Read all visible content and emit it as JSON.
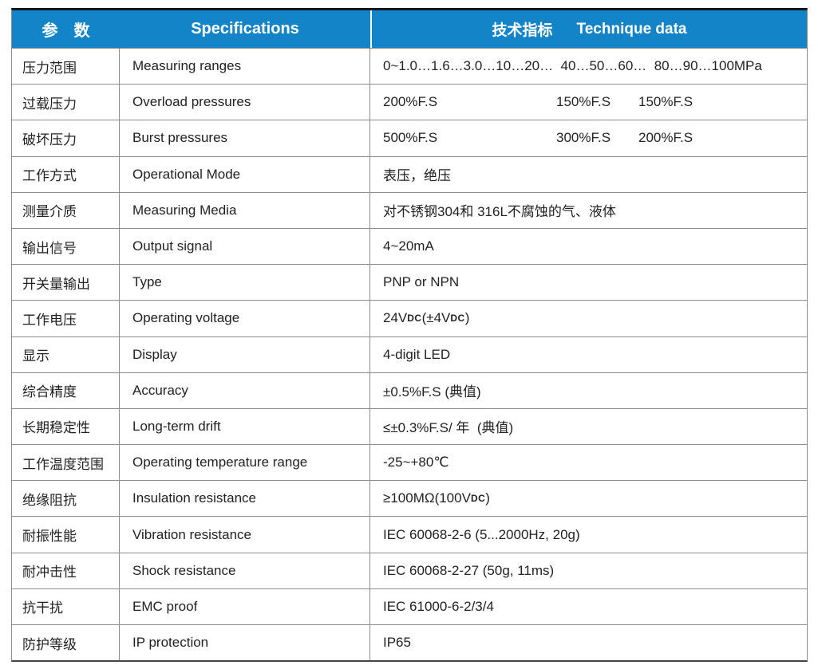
{
  "table": {
    "colors": {
      "header_bg": "#1484c8",
      "header_text": "#ffffff",
      "top_border": "#16161e",
      "grid_line": "#8c8c8c",
      "body_text": "#222222"
    },
    "header": {
      "col1": "参　数",
      "col2": "Specifications",
      "col3_cn": "技术指标",
      "col3_en": "Technique data"
    },
    "rows": [
      {
        "cn": "压力范围",
        "en": "Measuring ranges",
        "value": "0~1.0…1.6…3.0…10…20…  40…50…60…  80…90…100MPa"
      },
      {
        "cn": "过载压力",
        "en": "Overload pressures",
        "values3": [
          "200%F.S",
          "150%F.S",
          "150%F.S"
        ]
      },
      {
        "cn": "破坏压力",
        "en": "Burst pressures",
        "values3": [
          "500%F.S",
          "300%F.S",
          "200%F.S"
        ]
      },
      {
        "cn": "工作方式",
        "en": "Operational Mode",
        "value": "表压，绝压"
      },
      {
        "cn": "测量介质",
        "en": "Measuring Media",
        "value": "对不锈钢304和 316L不腐蚀的气、液体"
      },
      {
        "cn": "输出信号",
        "en": "Output signal",
        "value": "4~20mA"
      },
      {
        "cn": "开关量输出",
        "en": "Type",
        "value": "PNP or NPN"
      },
      {
        "cn": "工作电压",
        "en": "Operating voltage",
        "value_parts": [
          "24V",
          "DC",
          "(±4V",
          "DC",
          ")"
        ]
      },
      {
        "cn": "显示",
        "en": "Display",
        "value": "4-digit LED"
      },
      {
        "cn": "综合精度",
        "en": "Accuracy",
        "value": "±0.5%F.S (典值)"
      },
      {
        "cn": "长期稳定性",
        "en": "Long-term drift",
        "value": "≤±0.3%F.S/ 年  (典值)"
      },
      {
        "cn": "工作温度范围",
        "en": "Operating temperature range",
        "value": "-25~+80℃"
      },
      {
        "cn": "绝缘阻抗",
        "en": "Insulation resistance",
        "value_parts": [
          "≥100MΩ(100V",
          "DC",
          ")"
        ]
      },
      {
        "cn": "耐振性能",
        "en": "Vibration resistance",
        "value": "IEC 60068-2-6 (5...2000Hz, 20g)"
      },
      {
        "cn": "耐冲击性",
        "en": "Shock resistance",
        "value": "IEC 60068-2-27 (50g, 11ms)"
      },
      {
        "cn": "抗干扰",
        "en": "EMC proof",
        "value": "IEC 61000-6-2/3/4"
      },
      {
        "cn": "防护等级",
        "en": "IP protection",
        "value": "IP65"
      }
    ]
  }
}
